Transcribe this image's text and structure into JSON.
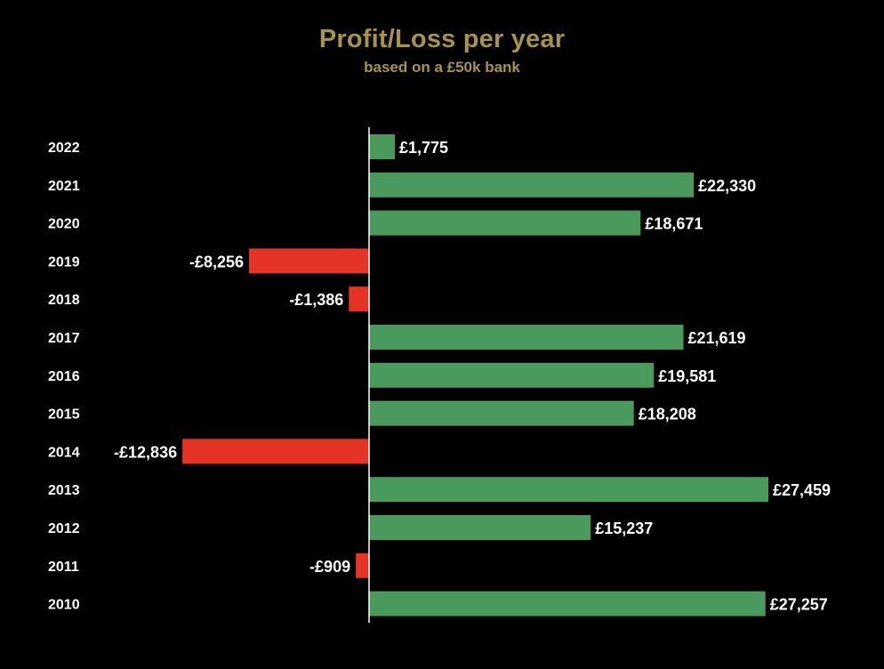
{
  "chart_data": {
    "type": "bar",
    "orientation": "horizontal",
    "title": "Profit/Loss per year",
    "subtitle": "based on a £50k bank",
    "categories": [
      "2022",
      "2021",
      "2020",
      "2019",
      "2018",
      "2017",
      "2016",
      "2015",
      "2014",
      "2013",
      "2012",
      "2011",
      "2010"
    ],
    "values": [
      1775,
      22330,
      18671,
      -8256,
      -1386,
      21619,
      19581,
      18208,
      -12836,
      27459,
      15237,
      -909,
      27257
    ],
    "data_labels": [
      "£1,775",
      "£22,330",
      "£18,671",
      "-£8,256",
      "-£1,386",
      "£21,619",
      "£19,581",
      "£18,208",
      "-£12,836",
      "£27,459",
      "£15,237",
      "-£909",
      "£27,257"
    ],
    "grid": false,
    "legend": "none"
  },
  "colors": {
    "background": "#000000",
    "title": "#A8934A",
    "subtitle": "#A8934A",
    "positive_bar": "#4A9A5E",
    "negative_bar": "#E53325",
    "axis_line": "#FFFFFF",
    "labels": "#FFFFFF"
  }
}
